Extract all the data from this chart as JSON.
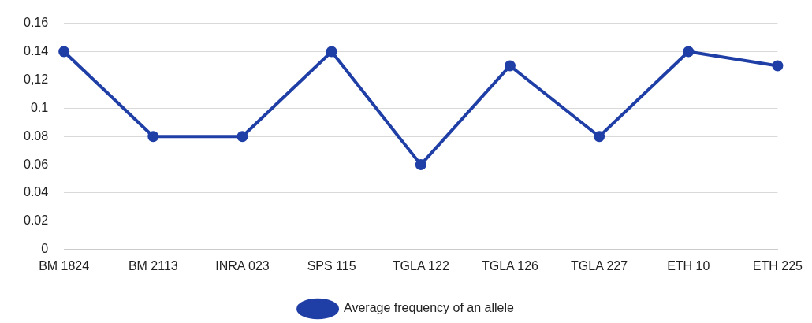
{
  "chart_data": {
    "type": "line",
    "categories": [
      "BM 1824",
      "BM 2113",
      "INRA 023",
      "SPS 115",
      "TGLA 122",
      "TGLA 126",
      "TGLA 227",
      "ETH 10",
      "ETH 225"
    ],
    "series": [
      {
        "name": "Average frequency of an allele",
        "color": "#1f3fa6",
        "values": [
          0.14,
          0.08,
          0.08,
          0.14,
          0.06,
          0.13,
          0.08,
          0.14,
          0.13
        ]
      }
    ],
    "ylim": [
      0,
      0.16
    ],
    "yticks": [
      0,
      0.02,
      0.04,
      0.06,
      0.08,
      0.1,
      {
        "value": 0.12,
        "label": "0,12"
      },
      0.14,
      0.16
    ],
    "grid": "y",
    "legend": "bottom",
    "marker": "circle",
    "line_style": "solid"
  }
}
